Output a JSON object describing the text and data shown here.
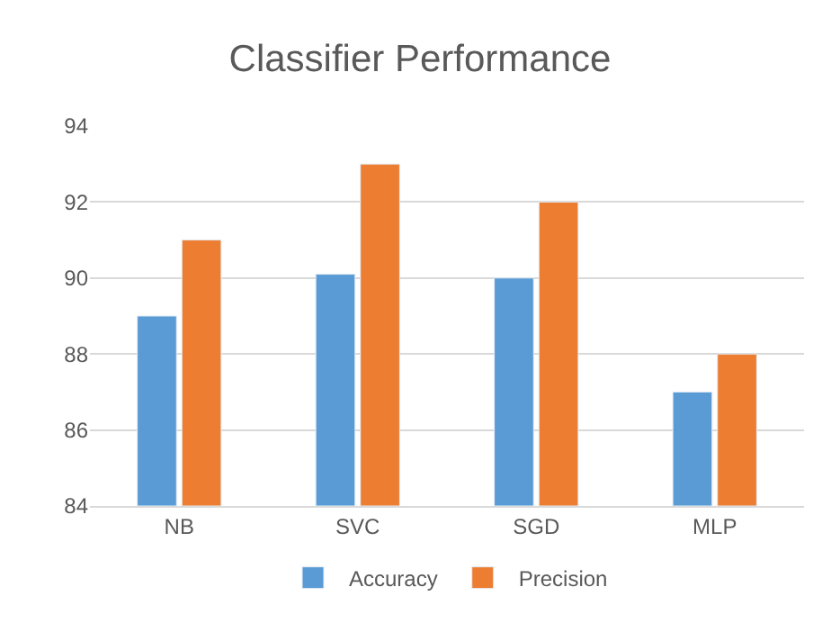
{
  "chart_data": {
    "type": "bar",
    "title": "Classifier Performance",
    "categories": [
      "NB",
      "SVC",
      "SGD",
      "MLP"
    ],
    "series": [
      {
        "name": "Accuracy",
        "color": "#5b9bd5",
        "values": [
          89,
          90.1,
          90,
          87
        ]
      },
      {
        "name": "Precision",
        "color": "#ed7d31",
        "values": [
          91,
          93,
          92,
          88
        ]
      }
    ],
    "ylim": [
      84,
      94
    ],
    "yticks": [
      84,
      86,
      88,
      90,
      92,
      94
    ],
    "grid": "y",
    "legend": "bottom"
  }
}
